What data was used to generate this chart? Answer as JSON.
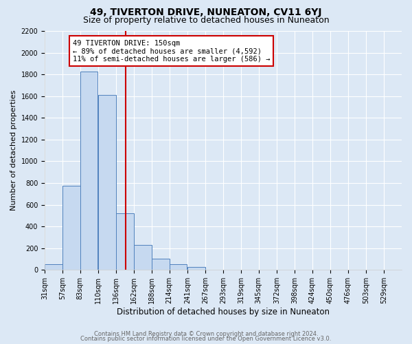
{
  "title": "49, TIVERTON DRIVE, NUNEATON, CV11 6YJ",
  "subtitle": "Size of property relative to detached houses in Nuneaton",
  "xlabel": "Distribution of detached houses by size in Nuneaton",
  "ylabel": "Number of detached properties",
  "bar_edges": [
    31,
    57,
    83,
    110,
    136,
    162,
    188,
    214,
    241,
    267,
    293,
    319,
    345,
    372,
    398,
    424,
    450,
    476,
    503,
    529,
    555
  ],
  "bar_heights": [
    50,
    775,
    1825,
    1610,
    520,
    230,
    105,
    55,
    25,
    0,
    0,
    0,
    0,
    0,
    0,
    0,
    0,
    0,
    0,
    0
  ],
  "bar_color": "#c6d9f0",
  "bar_edge_color": "#4f81bd",
  "vline_x": 150,
  "vline_color": "#cc0000",
  "ylim": [
    0,
    2200
  ],
  "yticks": [
    0,
    200,
    400,
    600,
    800,
    1000,
    1200,
    1400,
    1600,
    1800,
    2000,
    2200
  ],
  "annotation_text": "49 TIVERTON DRIVE: 150sqm\n← 89% of detached houses are smaller (4,592)\n11% of semi-detached houses are larger (586) →",
  "annotation_box_color": "#ffffff",
  "annotation_box_edge": "#cc0000",
  "footer1": "Contains HM Land Registry data © Crown copyright and database right 2024.",
  "footer2": "Contains public sector information licensed under the Open Government Licence v3.0.",
  "bg_color": "#dce8f5",
  "grid_color": "#ffffff",
  "title_fontsize": 10,
  "subtitle_fontsize": 9,
  "xlabel_fontsize": 8.5,
  "ylabel_fontsize": 8,
  "tick_fontsize": 7,
  "annotation_fontsize": 7.5,
  "footer_fontsize": 6
}
